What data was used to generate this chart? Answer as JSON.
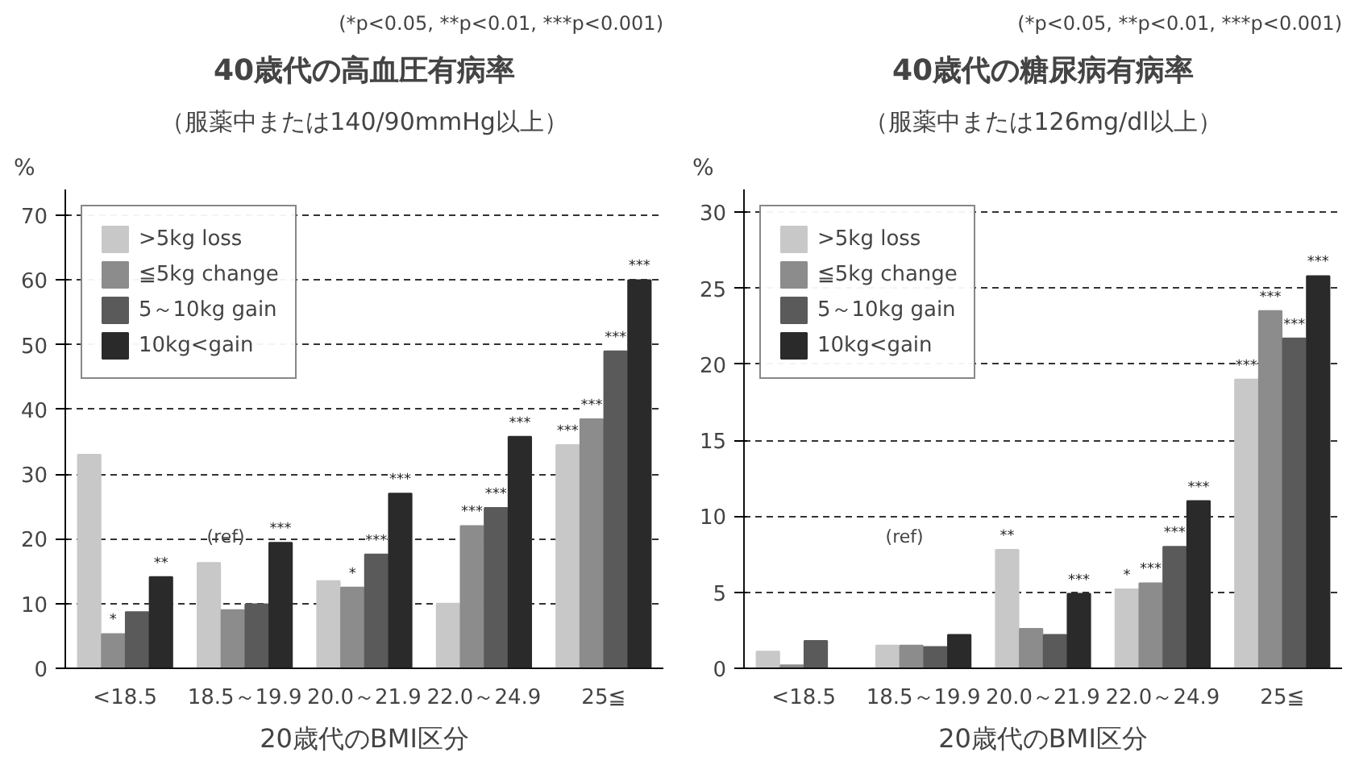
{
  "chart_data": [
    {
      "type": "bar",
      "title": "40歳代の高血圧有病率",
      "subtitle": "（服薬中または140/90mmHg以上）",
      "ylabel": "%",
      "xlabel": "20歳代のBMI区分",
      "categories": [
        "<18.5",
        "18.5～19.9",
        "20.0～21.9",
        "22.0～24.9",
        "25≦"
      ],
      "series": [
        {
          "name": ">5kg loss",
          "color": "#c8c8c8",
          "values": [
            33,
            16.3,
            13.5,
            10,
            34.5
          ],
          "value_labels": [
            null,
            null,
            null,
            null,
            "***"
          ]
        },
        {
          "name": "≦5kg change",
          "color": "#8c8c8c",
          "values": [
            5.3,
            9,
            12.5,
            22,
            38.5
          ],
          "value_labels": [
            "*",
            null,
            "*",
            "***",
            "***"
          ]
        },
        {
          "name": "5～10kg gain",
          "color": "#5a5a5a",
          "values": [
            8.7,
            9.9,
            17.6,
            24.8,
            49
          ],
          "value_labels": [
            null,
            null,
            "***",
            "***",
            "***"
          ]
        },
        {
          "name": "10kg<gain",
          "color": "#2a2a2a",
          "values": [
            14.1,
            19.4,
            27,
            35.8,
            60
          ],
          "value_labels": [
            "**",
            "***",
            "***",
            "***",
            "***"
          ]
        }
      ],
      "ylim": [
        0,
        74
      ],
      "yticks": [
        0,
        10,
        20,
        30,
        40,
        50,
        60,
        70
      ],
      "grid": "y",
      "legend": "top left",
      "annotations": [
        "(*p<0.05, **p<0.01, ***p<0.001)",
        "(ref)"
      ]
    },
    {
      "type": "bar",
      "title": "40歳代の糖尿病有病率",
      "subtitle": "（服薬中または126mg/dl以上）",
      "ylabel": "%",
      "xlabel": "20歳代のBMI区分",
      "categories": [
        "<18.5",
        "18.5～19.9",
        "20.0～21.9",
        "22.0～24.9",
        "25≦"
      ],
      "series": [
        {
          "name": ">5kg loss",
          "color": "#c8c8c8",
          "values": [
            1.1,
            1.5,
            7.8,
            5.2,
            19
          ],
          "value_labels": [
            null,
            null,
            "**",
            "*",
            "***"
          ]
        },
        {
          "name": "≦5kg change",
          "color": "#8c8c8c",
          "values": [
            0.2,
            1.5,
            2.6,
            5.6,
            23.5
          ],
          "value_labels": [
            null,
            null,
            null,
            "***",
            "***"
          ]
        },
        {
          "name": "5～10kg gain",
          "color": "#5a5a5a",
          "values": [
            1.8,
            1.4,
            2.2,
            8,
            21.7
          ],
          "value_labels": [
            null,
            null,
            null,
            "***",
            "***"
          ]
        },
        {
          "name": "10kg<gain",
          "color": "#2a2a2a",
          "values": [
            0,
            2.2,
            4.9,
            11,
            25.8
          ],
          "value_labels": [
            null,
            null,
            "***",
            "***",
            "***"
          ]
        }
      ],
      "ylim": [
        0,
        31.5
      ],
      "yticks": [
        0,
        5,
        10,
        15,
        20,
        25,
        30
      ],
      "grid": "y",
      "legend": "top left",
      "annotations": [
        "(*p<0.05, **p<0.01, ***p<0.001)",
        "(ref)"
      ]
    }
  ]
}
